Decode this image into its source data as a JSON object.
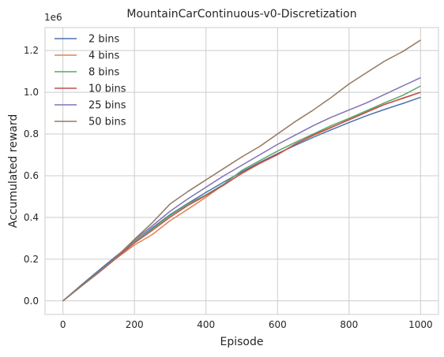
{
  "chart_data": {
    "type": "line",
    "title": "MountainCarContinuous-v0-Discretization",
    "xlabel": "Episode",
    "ylabel": "Accumulated reward",
    "y_offset_label": "1e6",
    "xlim": [
      -50,
      1050
    ],
    "ylim": [
      -0.065,
      1.31
    ],
    "y_scale_factor": 1000000,
    "grid": true,
    "legend_position": "top-left",
    "x_ticks": [
      0,
      200,
      400,
      600,
      800,
      1000
    ],
    "x_tick_labels": [
      "0",
      "200",
      "400",
      "600",
      "800",
      "1000"
    ],
    "y_ticks": [
      0.0,
      0.2,
      0.4,
      0.6,
      0.8,
      1.0,
      1.2
    ],
    "y_tick_labels": [
      "0.0",
      "0.2",
      "0.4",
      "0.6",
      "0.8",
      "1.0",
      "1.2"
    ],
    "x": [
      0,
      50,
      100,
      150,
      200,
      250,
      300,
      350,
      400,
      450,
      500,
      550,
      600,
      650,
      700,
      750,
      800,
      850,
      900,
      950,
      1000
    ],
    "series": [
      {
        "name": "2 bins",
        "color": "#4c72b0",
        "values": [
          0.0,
          0.074,
          0.146,
          0.216,
          0.284,
          0.35,
          0.414,
          0.468,
          0.52,
          0.57,
          0.618,
          0.664,
          0.706,
          0.746,
          0.784,
          0.82,
          0.855,
          0.888,
          0.918,
          0.946,
          0.976
        ]
      },
      {
        "name": "4 bins",
        "color": "#dd8452",
        "values": [
          0.0,
          0.068,
          0.135,
          0.205,
          0.268,
          0.318,
          0.385,
          0.44,
          0.497,
          0.558,
          0.61,
          0.658,
          0.7,
          0.752,
          0.792,
          0.83,
          0.87,
          0.91,
          0.942,
          0.97,
          1.0
        ]
      },
      {
        "name": "8 bins",
        "color": "#55a868",
        "values": [
          0.0,
          0.07,
          0.138,
          0.21,
          0.285,
          0.345,
          0.41,
          0.465,
          0.508,
          0.56,
          0.625,
          0.672,
          0.718,
          0.76,
          0.8,
          0.84,
          0.875,
          0.912,
          0.95,
          0.985,
          1.03
        ]
      },
      {
        "name": "10 bins",
        "color": "#c44e52",
        "values": [
          0.0,
          0.069,
          0.136,
          0.207,
          0.278,
          0.338,
          0.402,
          0.458,
          0.505,
          0.555,
          0.612,
          0.66,
          0.702,
          0.752,
          0.795,
          0.832,
          0.868,
          0.905,
          0.942,
          0.972,
          1.0
        ]
      },
      {
        "name": "25 bins",
        "color": "#8172b3",
        "values": [
          0.0,
          0.069,
          0.138,
          0.21,
          0.292,
          0.36,
          0.43,
          0.49,
          0.545,
          0.6,
          0.65,
          0.7,
          0.75,
          0.795,
          0.84,
          0.88,
          0.915,
          0.95,
          0.99,
          1.03,
          1.07
        ]
      },
      {
        "name": "50 bins",
        "color": "#937860",
        "values": [
          0.0,
          0.07,
          0.137,
          0.212,
          0.295,
          0.375,
          0.465,
          0.525,
          0.58,
          0.635,
          0.69,
          0.74,
          0.8,
          0.86,
          0.915,
          0.975,
          1.04,
          1.095,
          1.15,
          1.195,
          1.25
        ]
      }
    ]
  }
}
